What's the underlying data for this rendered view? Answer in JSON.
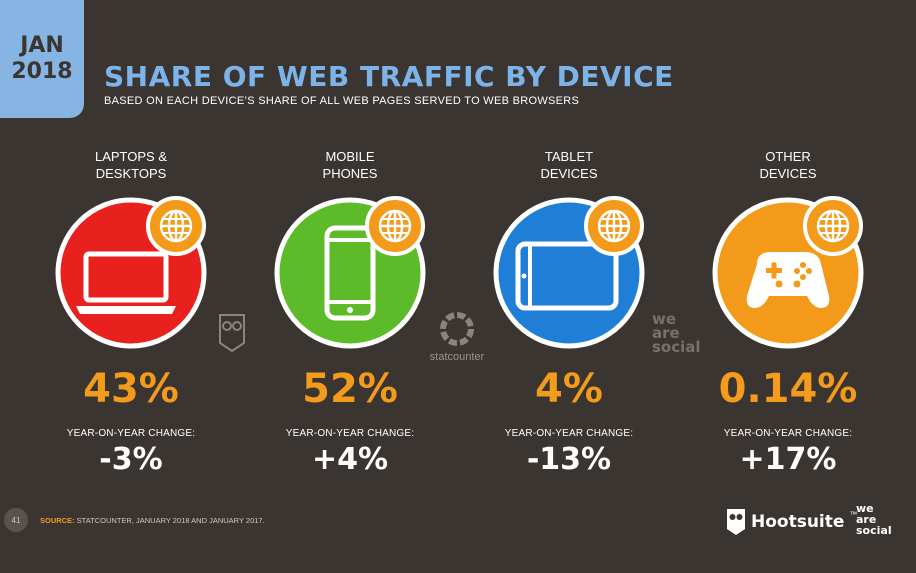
{
  "header": {
    "date_month": "JAN",
    "date_year": "2018",
    "title": "SHARE OF WEB TRAFFIC BY DEVICE",
    "subtitle": "BASED ON EACH DEVICE’S SHARE OF ALL WEB PAGES SERVED TO WEB BROWSERS"
  },
  "chart_data": {
    "type": "table",
    "title": "SHARE OF WEB TRAFFIC BY DEVICE",
    "subtitle": "BASED ON EACH DEVICE’S SHARE OF ALL WEB PAGES SERVED TO WEB BROWSERS",
    "categories": [
      {
        "line1": "LAPTOPS &",
        "line2": "DESKTOPS",
        "share": "43%",
        "yoy_label": "YEAR-ON-YEAR CHANGE:",
        "yoy": "-3%",
        "color": "#e8211f",
        "icon": "laptop-icon"
      },
      {
        "line1": "MOBILE",
        "line2": "PHONES",
        "share": "52%",
        "yoy_label": "YEAR-ON-YEAR CHANGE:",
        "yoy": "+4%",
        "color": "#5dbb2a",
        "icon": "mobile-phone-icon"
      },
      {
        "line1": "TABLET",
        "line2": "DEVICES",
        "share": "4%",
        "yoy_label": "YEAR-ON-YEAR CHANGE:",
        "yoy": "-13%",
        "color": "#1f7fd6",
        "icon": "tablet-icon"
      },
      {
        "line1": "OTHER",
        "line2": "DEVICES",
        "share": "0.14%",
        "yoy_label": "YEAR-ON-YEAR CHANGE:",
        "yoy": "+17%",
        "color": "#f39a1b",
        "icon": "gamepad-icon"
      }
    ],
    "values": [
      43,
      52,
      4,
      0.14
    ],
    "yoy_change": [
      -3,
      4,
      -13,
      17
    ]
  },
  "footer": {
    "page_number": "41",
    "source_key": "SOURCE:",
    "source_text": " STATCOUNTER, JANUARY 2018 AND JANUARY 2017.",
    "brand_hootsuite": "Hootsuite",
    "brand_trademark": "™",
    "brand_wearesocial": [
      "we",
      "are",
      "social"
    ]
  },
  "watermarks": {
    "statcounter": "statcounter",
    "wearesocial": [
      "we",
      "are",
      "social"
    ]
  },
  "colors": {
    "background": "#3b3532",
    "accent_blue": "#7cb3e8",
    "accent_orange": "#f29b1d",
    "globe_badge": "#f39a1b"
  }
}
